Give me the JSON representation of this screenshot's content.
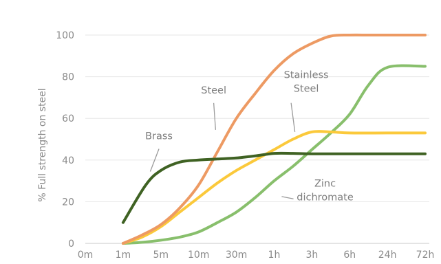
{
  "chart_data": {
    "type": "line",
    "title": "",
    "xlabel": "",
    "ylabel": "% Full strength on steel",
    "ylim": [
      0,
      100
    ],
    "yticks": [
      0,
      20,
      40,
      60,
      80,
      100
    ],
    "categories": [
      "0m",
      "1m",
      "5m",
      "10m",
      "30m",
      "1h",
      "3h",
      "6h",
      "24h",
      "72h"
    ],
    "grid": "horizontal",
    "legend": "none",
    "x_positions": [
      0,
      1,
      2,
      3,
      4,
      5,
      6,
      7,
      8,
      9
    ],
    "series": [
      {
        "name": "Brass",
        "color": "#3f6223",
        "points": [
          [
            1,
            10
          ],
          [
            1.6,
            28
          ],
          [
            2,
            35
          ],
          [
            2.5,
            39
          ],
          [
            3,
            40
          ],
          [
            3.5,
            40.5
          ],
          [
            4,
            41
          ],
          [
            4.5,
            42
          ],
          [
            5,
            43.2
          ],
          [
            5.5,
            43.2
          ],
          [
            6,
            43
          ],
          [
            7,
            43
          ],
          [
            8,
            43
          ],
          [
            9,
            43
          ]
        ]
      },
      {
        "name": "Steel",
        "color": "#ed9a63",
        "points": [
          [
            1,
            0
          ],
          [
            1.5,
            4
          ],
          [
            2,
            9
          ],
          [
            2.5,
            17
          ],
          [
            3,
            28
          ],
          [
            3.5,
            44
          ],
          [
            4,
            60
          ],
          [
            4.5,
            72
          ],
          [
            5,
            83
          ],
          [
            5.5,
            91
          ],
          [
            6,
            96
          ],
          [
            6.5,
            99.5
          ],
          [
            7,
            100
          ],
          [
            7.5,
            100
          ],
          [
            8,
            100
          ],
          [
            9,
            100
          ]
        ]
      },
      {
        "name": "Stainless Steel",
        "color": "#fbc93b",
        "points": [
          [
            1,
            0
          ],
          [
            1.5,
            3
          ],
          [
            2,
            8
          ],
          [
            2.5,
            15
          ],
          [
            3,
            22
          ],
          [
            3.5,
            29
          ],
          [
            4,
            35
          ],
          [
            4.5,
            40
          ],
          [
            5,
            45
          ],
          [
            5.5,
            50
          ],
          [
            6,
            53.5
          ],
          [
            6.5,
            53.5
          ],
          [
            7,
            53
          ],
          [
            8,
            53
          ],
          [
            9,
            53
          ]
        ]
      },
      {
        "name": "Zinc dichromate",
        "color": "#88bf6c",
        "points": [
          [
            1,
            0
          ],
          [
            1.5,
            0.5
          ],
          [
            2,
            1.5
          ],
          [
            2.5,
            3
          ],
          [
            3,
            5.5
          ],
          [
            3.5,
            10
          ],
          [
            4,
            15
          ],
          [
            4.5,
            22
          ],
          [
            5,
            30
          ],
          [
            5.5,
            37
          ],
          [
            6,
            45
          ],
          [
            6.5,
            53
          ],
          [
            7,
            62
          ],
          [
            7.5,
            76
          ],
          [
            8,
            84.5
          ],
          [
            9,
            85
          ]
        ]
      }
    ],
    "annotations": [
      {
        "lines": [
          "Brass"
        ],
        "anchor": [
          1.72,
          34.5
        ],
        "label_at": [
          1.95,
          50
        ],
        "align": "middle"
      },
      {
        "lines": [
          "Steel"
        ],
        "anchor": [
          3.45,
          54.5
        ],
        "label_at": [
          3.4,
          72
        ],
        "align": "middle"
      },
      {
        "lines": [
          "Stainless",
          "Steel"
        ],
        "anchor": [
          5.55,
          53.5
        ],
        "label_at": [
          5.85,
          76
        ],
        "align": "middle"
      },
      {
        "lines": [
          "Zinc",
          "dichromate"
        ],
        "anchor": [
          5.2,
          22.5
        ],
        "label_at": [
          6.35,
          24
        ],
        "align": "middle"
      }
    ]
  }
}
